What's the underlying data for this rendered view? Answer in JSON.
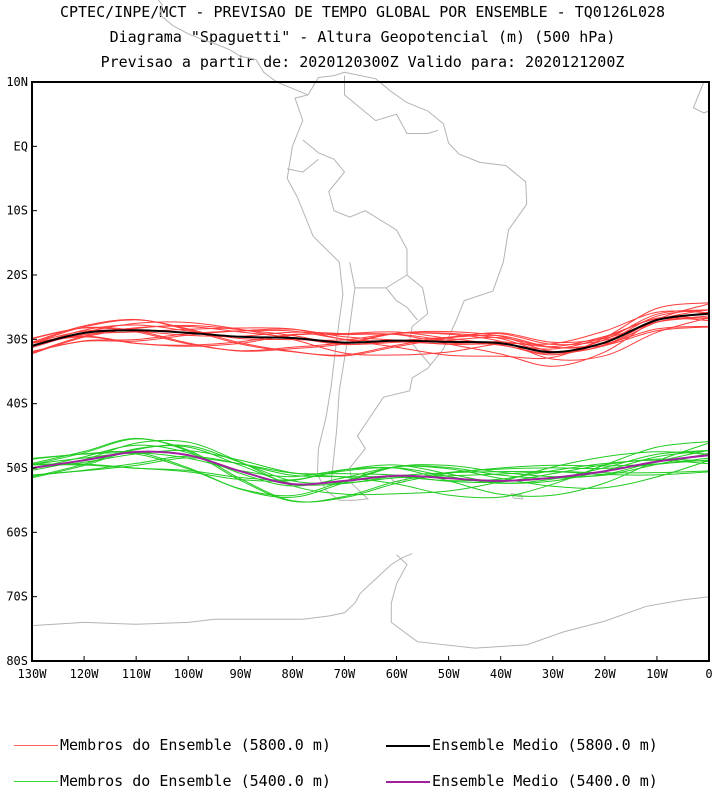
{
  "title": {
    "line1": "CPTEC/INPE/MCT - PREVISAO DE TEMPO GLOBAL POR ENSEMBLE - TQ0126L028",
    "line2": "Diagrama \"Spaguetti\" - Altura Geopotencial (m) (500 hPa)",
    "line3": "Previsao a partir de: 2020120300Z  Valido para: 2020121200Z"
  },
  "map": {
    "lon_range": [
      -130,
      0
    ],
    "lat_range": [
      -80,
      10
    ],
    "lat_ticks": [
      {
        "value": 10,
        "label": "10N"
      },
      {
        "value": 0,
        "label": "EQ"
      },
      {
        "value": -10,
        "label": "10S"
      },
      {
        "value": -20,
        "label": "20S"
      },
      {
        "value": -30,
        "label": "30S"
      },
      {
        "value": -40,
        "label": "40S"
      },
      {
        "value": -50,
        "label": "50S"
      },
      {
        "value": -60,
        "label": "60S"
      },
      {
        "value": -70,
        "label": "70S"
      },
      {
        "value": -80,
        "label": "80S"
      }
    ],
    "lon_ticks": [
      {
        "value": -130,
        "label": "130W"
      },
      {
        "value": -120,
        "label": "120W"
      },
      {
        "value": -110,
        "label": "110W"
      },
      {
        "value": -100,
        "label": "100W"
      },
      {
        "value": -90,
        "label": "90W"
      },
      {
        "value": -80,
        "label": "80W"
      },
      {
        "value": -70,
        "label": "70W"
      },
      {
        "value": -60,
        "label": "60W"
      },
      {
        "value": -50,
        "label": "50W"
      },
      {
        "value": -40,
        "label": "40W"
      },
      {
        "value": -30,
        "label": "30W"
      },
      {
        "value": -20,
        "label": "20W"
      },
      {
        "value": -10,
        "label": "10W"
      },
      {
        "value": 0,
        "label": "0"
      }
    ],
    "coast_color": "#b4b4b4",
    "contours": {
      "members_5800_color": "#ff3c3c",
      "mean_5800_color": "#000000",
      "members_5400_color": "#22cc22",
      "mean_5400_color": "#a020a0",
      "lon": [
        -130,
        -120,
        -110,
        -100,
        -90,
        -80,
        -70,
        -60,
        -50,
        -40,
        -30,
        -20,
        -10,
        0
      ],
      "mean_5800_lat": [
        -31,
        -29,
        -28.6,
        -29,
        -29.6,
        -29.8,
        -30.5,
        -30.2,
        -30.4,
        -30.6,
        -32,
        -30.5,
        -27,
        -26
      ],
      "mean_5400_lat": [
        -50,
        -48.8,
        -47.5,
        -48,
        -50.5,
        -52.5,
        -52,
        -51.2,
        -51.6,
        -52,
        -51.5,
        -50.5,
        -49,
        -48
      ]
    }
  },
  "legend": {
    "items": [
      {
        "label": "Membros do Ensemble (5800.0 m)",
        "color": "#ff6060"
      },
      {
        "label": "Ensemble Medio (5800.0 m)",
        "color": "#000000"
      },
      {
        "label": "Membros do Ensemble (5400.0 m)",
        "color": "#33dd33"
      },
      {
        "label": "Ensemble Medio (5400.0 m)",
        "color": "#a020a0"
      }
    ]
  }
}
